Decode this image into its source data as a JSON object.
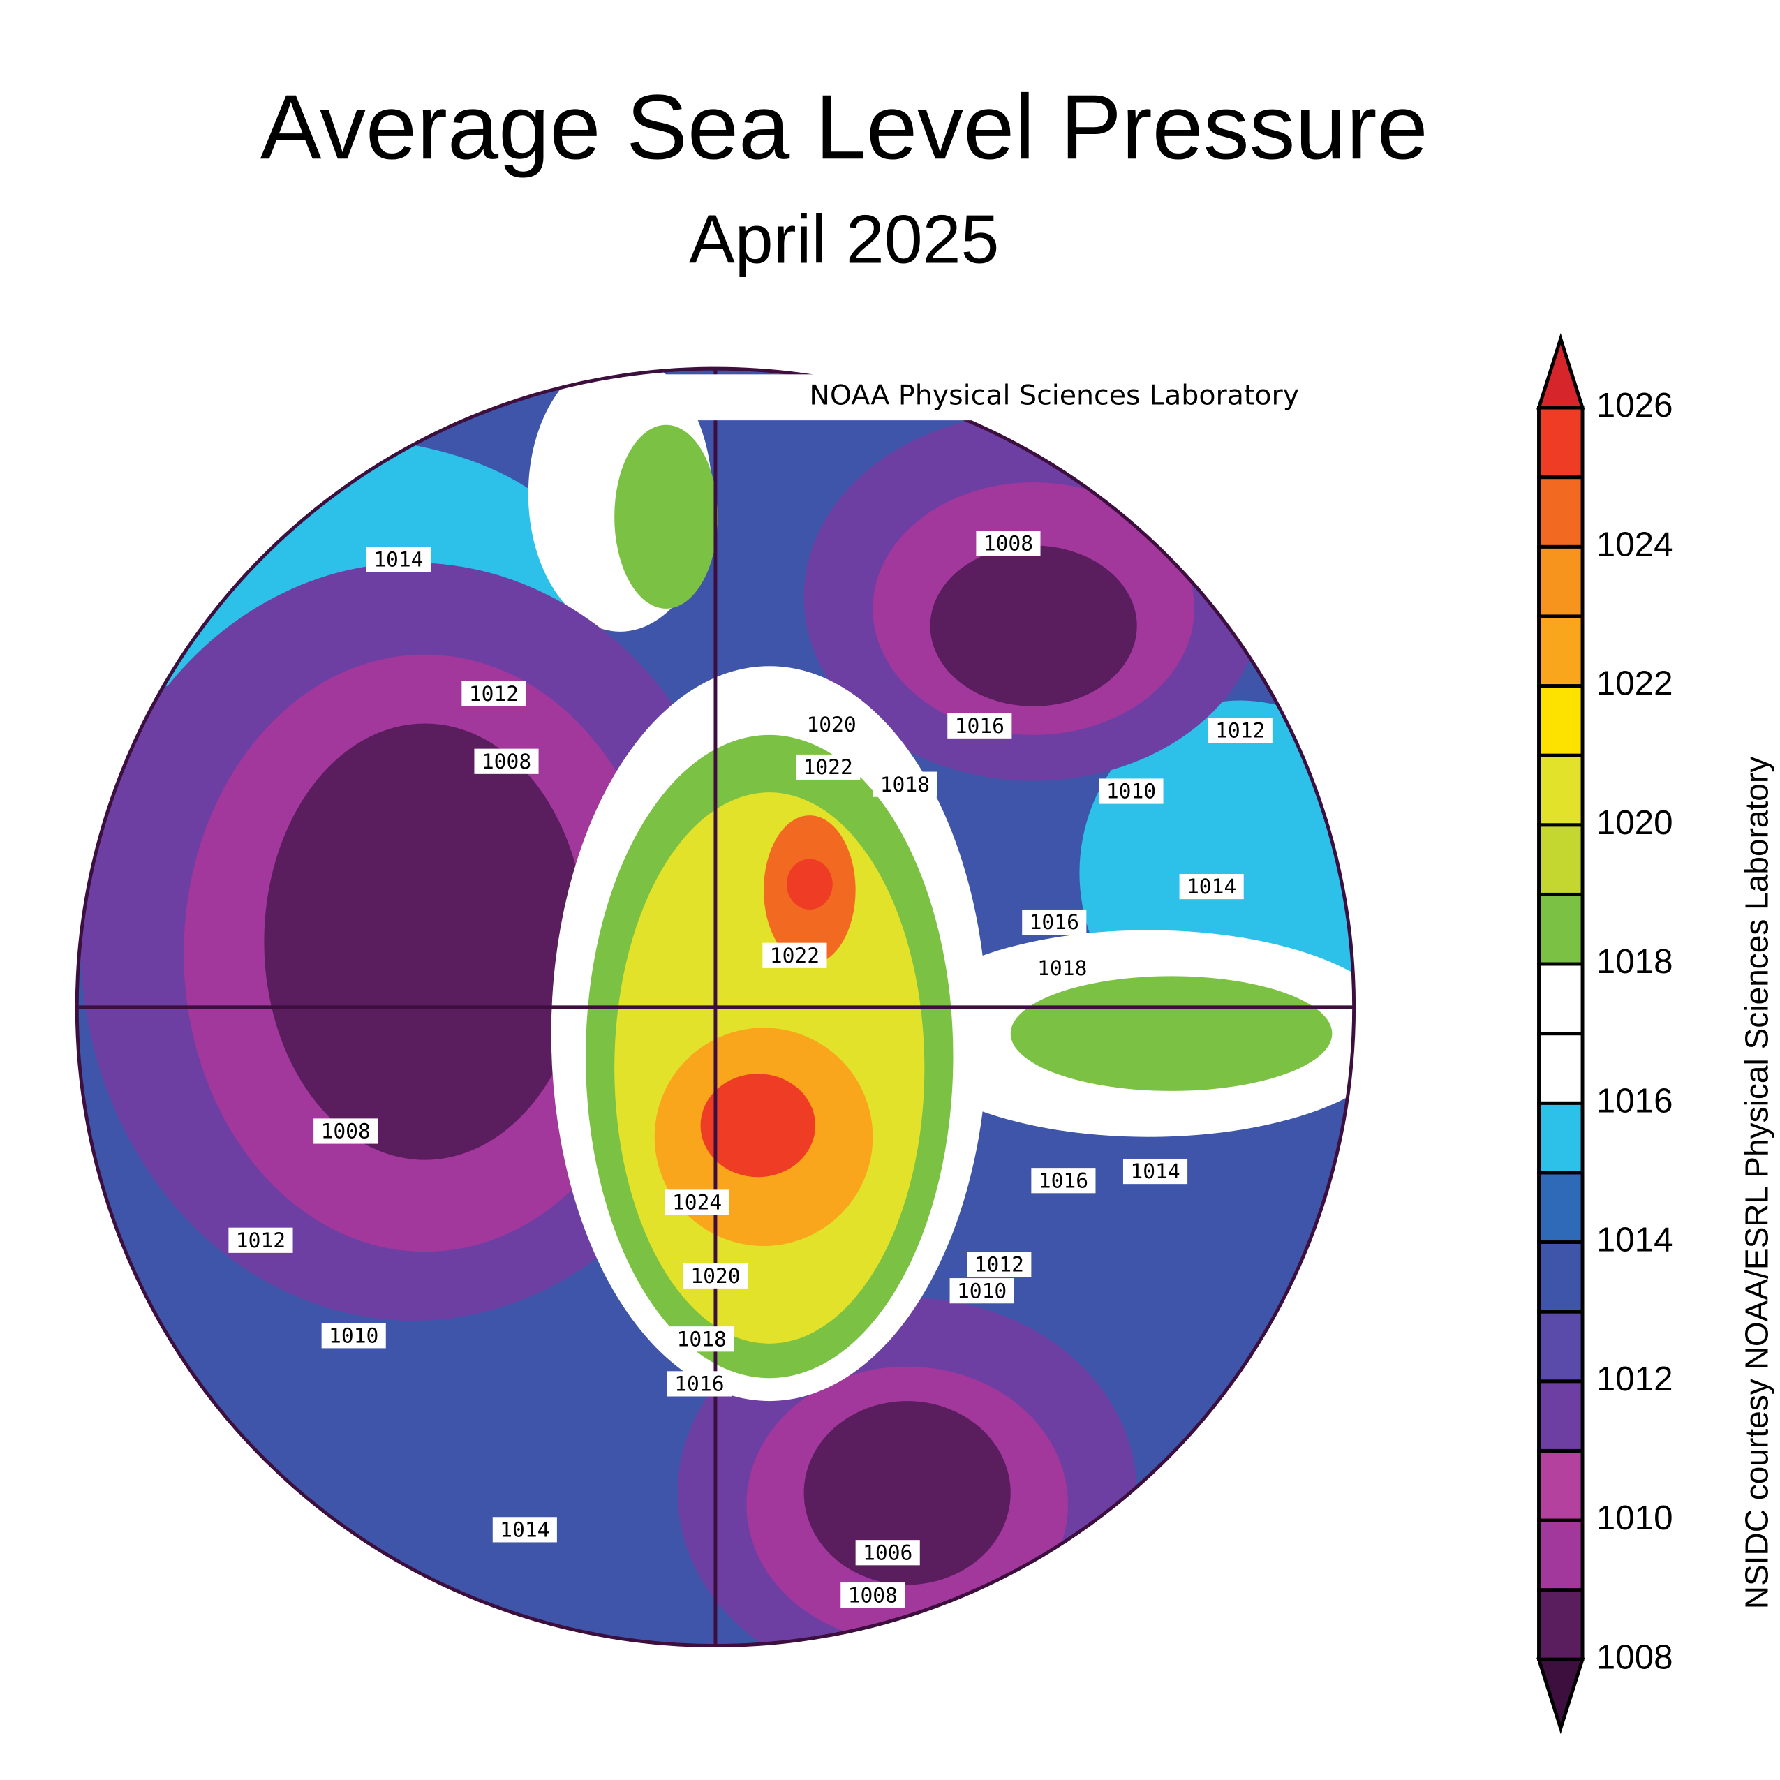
{
  "header": {
    "title": "Average Sea Level Pressure",
    "subtitle": "April 2025"
  },
  "map": {
    "credit": "NOAA Physical Sciences Laboratory",
    "contour_labels": [
      1014,
      1012,
      1008,
      1008,
      1012,
      1020,
      1016,
      1022,
      1018,
      1010,
      1014,
      1016,
      1022,
      1018,
      1008,
      1024,
      1016,
      1014,
      1012,
      1012,
      1010,
      1020,
      1018,
      1010,
      1016,
      1014,
      1006,
      1008
    ]
  },
  "colorbar": {
    "ticks": [
      1008,
      1010,
      1012,
      1014,
      1016,
      1018,
      1020,
      1022,
      1024,
      1026
    ],
    "colors": [
      "#5a1d5e",
      "#a2379c",
      "#b5419f",
      "#6e3fa2",
      "#5a4aa9",
      "#3f55a9",
      "#2f6ab9",
      "#2dc0e9",
      "#ffffff",
      "#ffffff",
      "#7bc143",
      "#c3d730",
      "#e2e22b",
      "#fde200",
      "#f9a61c",
      "#f7941d",
      "#f26a22",
      "#ee3c25"
    ],
    "low_color": "#3d0f3e",
    "high_color": "#d7262b"
  },
  "side_text": "NSIDC courtesy NOAA/ESRL Physical Sciences Laboratory"
}
